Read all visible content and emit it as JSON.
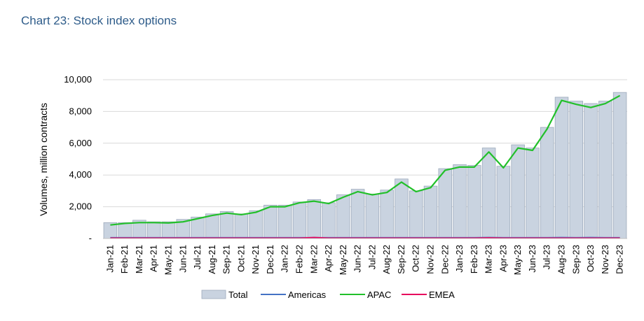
{
  "title": "Chart 23: Stock index options",
  "chart_data": {
    "type": "bar+line",
    "title": "Chart 23: Stock index options",
    "ylabel": "Volumes, million contracts",
    "ylim": [
      0,
      10000
    ],
    "yticks": [
      0,
      2000,
      4000,
      6000,
      8000,
      10000
    ],
    "ytick_labels": [
      "-",
      "2,000",
      "4,000",
      "6,000",
      "8,000",
      "10,000"
    ],
    "grid": true,
    "legend_position": "bottom",
    "categories": [
      "Jan-21",
      "Feb-21",
      "Mar-21",
      "Apr-21",
      "May-21",
      "Jun-21",
      "Jul-21",
      "Aug-21",
      "Sep-21",
      "Oct-21",
      "Nov-21",
      "Dec-21",
      "Jan-22",
      "Feb-22",
      "Mar-22",
      "Apr-22",
      "May-22",
      "Jun-22",
      "Jul-22",
      "Aug-22",
      "Sep-22",
      "Oct-22",
      "Nov-22",
      "Dec-22",
      "Jan-23",
      "Feb-23",
      "Mar-23",
      "Apr-23",
      "May-23",
      "Jun-23",
      "Jul-23",
      "Aug-23",
      "Sep-23",
      "Oct-23",
      "Nov-23",
      "Dec-23"
    ],
    "series": [
      {
        "name": "Total",
        "kind": "bar",
        "color": "#C9D3E0",
        "edge": "#9DAABB",
        "values": [
          1000,
          1000,
          1150,
          1050,
          1050,
          1200,
          1350,
          1550,
          1700,
          1550,
          1750,
          2100,
          2100,
          2300,
          2450,
          2250,
          2750,
          3100,
          2800,
          3050,
          3750,
          3000,
          3300,
          4400,
          4650,
          4600,
          5700,
          4550,
          5900,
          5700,
          7000,
          8900,
          8650,
          8500,
          8650,
          9200
        ]
      },
      {
        "name": "Americas",
        "kind": "line",
        "color": "#4472C4",
        "values": [
          60,
          60,
          60,
          60,
          60,
          60,
          60,
          60,
          60,
          60,
          60,
          60,
          60,
          60,
          60,
          60,
          60,
          60,
          60,
          60,
          60,
          60,
          60,
          60,
          60,
          60,
          70,
          60,
          60,
          60,
          60,
          70,
          60,
          70,
          60,
          60
        ]
      },
      {
        "name": "APAC",
        "kind": "line",
        "color": "#22C02A",
        "values": [
          850,
          950,
          1000,
          1000,
          980,
          1050,
          1250,
          1450,
          1600,
          1500,
          1650,
          2000,
          2000,
          2250,
          2350,
          2200,
          2600,
          2950,
          2750,
          2900,
          3550,
          2950,
          3200,
          4300,
          4500,
          4500,
          5450,
          4450,
          5700,
          5550,
          6900,
          8700,
          8450,
          8250,
          8500,
          9000
        ]
      },
      {
        "name": "EMEA",
        "kind": "line",
        "color": "#E6005C",
        "values": [
          30,
          30,
          30,
          30,
          30,
          30,
          30,
          30,
          30,
          30,
          30,
          30,
          30,
          30,
          70,
          30,
          30,
          30,
          30,
          30,
          30,
          30,
          30,
          30,
          30,
          30,
          50,
          30,
          30,
          30,
          30,
          30,
          30,
          30,
          30,
          30
        ]
      }
    ]
  }
}
